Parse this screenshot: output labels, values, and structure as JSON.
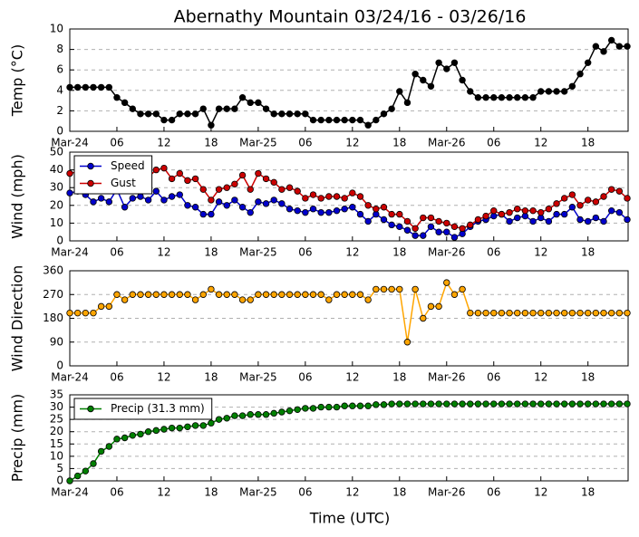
{
  "title": "Abernathy Mountain 03/24/16 - 03/26/16",
  "xlabel": "Time (UTC)",
  "chart_data": [
    {
      "type": "line",
      "ylabel": "Temp (°C)",
      "categories": [
        "Mar-24",
        null,
        null,
        null,
        null,
        null,
        "06",
        null,
        null,
        null,
        null,
        null,
        "12",
        null,
        null,
        null,
        null,
        null,
        "18",
        null,
        null,
        null,
        null,
        null,
        "Mar-25",
        null,
        null,
        null,
        null,
        null,
        "06",
        null,
        null,
        null,
        null,
        null,
        "12",
        null,
        null,
        null,
        null,
        null,
        "18",
        null,
        null,
        null,
        null,
        null,
        "Mar-26",
        null,
        null,
        null,
        null,
        null,
        "06",
        null,
        null,
        null,
        null,
        null,
        "12",
        null,
        null,
        null,
        null,
        null,
        "18",
        null,
        null,
        null,
        null,
        null
      ],
      "ylim": [
        0,
        10
      ],
      "yticks": [
        0,
        2,
        4,
        6,
        8,
        10
      ],
      "grid": true,
      "series": [
        {
          "color": "#000000",
          "values": [
            4.3,
            4.3,
            4.3,
            4.3,
            4.3,
            4.3,
            3.3,
            2.8,
            2.2,
            1.7,
            1.7,
            1.7,
            1.1,
            1.1,
            1.7,
            1.7,
            1.7,
            2.2,
            0.6,
            2.2,
            2.2,
            2.2,
            3.3,
            2.8,
            2.8,
            2.2,
            1.7,
            1.7,
            1.7,
            1.7,
            1.7,
            1.1,
            1.1,
            1.1,
            1.1,
            1.1,
            1.1,
            1.1,
            0.6,
            1.1,
            1.7,
            2.2,
            3.9,
            2.8,
            5.6,
            5.0,
            4.4,
            6.7,
            6.1,
            6.7,
            5.0,
            3.9,
            3.3,
            3.3,
            3.3,
            3.3,
            3.3,
            3.3,
            3.3,
            3.3,
            3.9,
            3.9,
            3.9,
            3.9,
            4.4,
            5.6,
            6.7,
            8.3,
            7.8,
            8.9,
            8.3,
            8.3
          ]
        }
      ]
    },
    {
      "type": "line",
      "ylabel": "Wind (mph)",
      "categories": [
        "Mar-24",
        null,
        null,
        null,
        null,
        null,
        "06",
        null,
        null,
        null,
        null,
        null,
        "12",
        null,
        null,
        null,
        null,
        null,
        "18",
        null,
        null,
        null,
        null,
        null,
        "Mar-25",
        null,
        null,
        null,
        null,
        null,
        "06",
        null,
        null,
        null,
        null,
        null,
        "12",
        null,
        null,
        null,
        null,
        null,
        "18",
        null,
        null,
        null,
        null,
        null,
        "Mar-26",
        null,
        null,
        null,
        null,
        null,
        "06",
        null,
        null,
        null,
        null,
        null,
        "12",
        null,
        null,
        null,
        null,
        null,
        "18",
        null,
        null,
        null,
        null,
        null
      ],
      "ylim": [
        0,
        50
      ],
      "yticks": [
        0,
        10,
        20,
        30,
        40,
        50
      ],
      "grid": true,
      "legend": "upper left",
      "series": [
        {
          "name": "Speed",
          "color": "#0000cc",
          "values": [
            27,
            28,
            26,
            22,
            24,
            22,
            29,
            19,
            24,
            25,
            23,
            28,
            23,
            25,
            26,
            20,
            19,
            15,
            15,
            22,
            20,
            23,
            19,
            16,
            22,
            21,
            23,
            21,
            18,
            17,
            16,
            18,
            16,
            16,
            17,
            18,
            19,
            15,
            11,
            15,
            12,
            9,
            8,
            6,
            3,
            3,
            8,
            5,
            5,
            2,
            4,
            8,
            11,
            12,
            14,
            15,
            11,
            13,
            14,
            11,
            13,
            11,
            15,
            15,
            19,
            12,
            11,
            13,
            11,
            17,
            16,
            12
          ]
        },
        {
          "name": "Gust",
          "color": "#cc0000",
          "values": [
            38,
            39,
            36,
            37,
            36,
            34,
            35,
            30,
            30,
            35,
            36,
            40,
            41,
            35,
            38,
            34,
            35,
            29,
            23,
            29,
            30,
            32,
            37,
            29,
            38,
            35,
            33,
            29,
            30,
            28,
            24,
            26,
            24,
            25,
            25,
            24,
            27,
            25,
            20,
            18,
            19,
            15,
            15,
            11,
            7,
            13,
            13,
            11,
            10,
            8,
            7,
            9,
            12,
            14,
            17,
            15,
            16,
            18,
            17,
            17,
            16,
            18,
            21,
            24,
            26,
            20,
            23,
            22,
            25,
            29,
            28,
            24
          ]
        }
      ]
    },
    {
      "type": "line",
      "ylabel": "Wind Direction",
      "categories": [
        "Mar-24",
        null,
        null,
        null,
        null,
        null,
        "06",
        null,
        null,
        null,
        null,
        null,
        "12",
        null,
        null,
        null,
        null,
        null,
        "18",
        null,
        null,
        null,
        null,
        null,
        "Mar-25",
        null,
        null,
        null,
        null,
        null,
        "06",
        null,
        null,
        null,
        null,
        null,
        "12",
        null,
        null,
        null,
        null,
        null,
        "18",
        null,
        null,
        null,
        null,
        null,
        "Mar-26",
        null,
        null,
        null,
        null,
        null,
        "06",
        null,
        null,
        null,
        null,
        null,
        "12",
        null,
        null,
        null,
        null,
        null,
        "18",
        null,
        null,
        null,
        null,
        null
      ],
      "ylim": [
        0,
        360
      ],
      "yticks": [
        0,
        90,
        180,
        270,
        360
      ],
      "grid": true,
      "series": [
        {
          "color": "#ffa500",
          "values": [
            200,
            200,
            200,
            200,
            225,
            225,
            270,
            250,
            270,
            270,
            270,
            270,
            270,
            270,
            270,
            270,
            250,
            270,
            290,
            270,
            270,
            270,
            250,
            250,
            270,
            270,
            270,
            270,
            270,
            270,
            270,
            270,
            270,
            250,
            270,
            270,
            270,
            270,
            250,
            290,
            290,
            290,
            290,
            90,
            290,
            180,
            225,
            225,
            315,
            270,
            290,
            200,
            200,
            200,
            200,
            200,
            200,
            200,
            200,
            200,
            200,
            200,
            200,
            200,
            200,
            200,
            200,
            200,
            200,
            200,
            200,
            200
          ]
        }
      ]
    },
    {
      "type": "line",
      "ylabel": "Precip (mm)",
      "categories": [
        "Mar-24",
        null,
        null,
        null,
        null,
        null,
        "06",
        null,
        null,
        null,
        null,
        null,
        "12",
        null,
        null,
        null,
        null,
        null,
        "18",
        null,
        null,
        null,
        null,
        null,
        "Mar-25",
        null,
        null,
        null,
        null,
        null,
        "06",
        null,
        null,
        null,
        null,
        null,
        "12",
        null,
        null,
        null,
        null,
        null,
        "18",
        null,
        null,
        null,
        null,
        null,
        "Mar-26",
        null,
        null,
        null,
        null,
        null,
        "06",
        null,
        null,
        null,
        null,
        null,
        "12",
        null,
        null,
        null,
        null,
        null,
        "18",
        null,
        null,
        null,
        null,
        null
      ],
      "ylim": [
        0,
        35
      ],
      "yticks": [
        0,
        5,
        10,
        15,
        20,
        25,
        30,
        35
      ],
      "grid": true,
      "legend": "upper left",
      "series": [
        {
          "name": "Precip (31.3 mm)",
          "color": "#008000",
          "values": [
            0,
            2,
            4,
            7,
            12,
            14,
            17,
            17.5,
            18.5,
            19,
            20,
            20.5,
            21,
            21.5,
            21.5,
            22,
            22.5,
            22.5,
            23.5,
            25,
            25.5,
            26.5,
            26.5,
            27,
            27,
            27,
            27.5,
            28,
            28.5,
            29,
            29.5,
            29.5,
            30,
            30,
            30,
            30.5,
            30.5,
            30.5,
            30.5,
            31,
            31,
            31.3,
            31.3,
            31.3,
            31.3,
            31.3,
            31.3,
            31.3,
            31.3,
            31.3,
            31.3,
            31.3,
            31.3,
            31.3,
            31.3,
            31.3,
            31.3,
            31.3,
            31.3,
            31.3,
            31.3,
            31.3,
            31.3,
            31.3,
            31.3,
            31.3,
            31.3,
            31.3,
            31.3,
            31.3,
            31.3,
            31.3
          ]
        }
      ]
    }
  ]
}
